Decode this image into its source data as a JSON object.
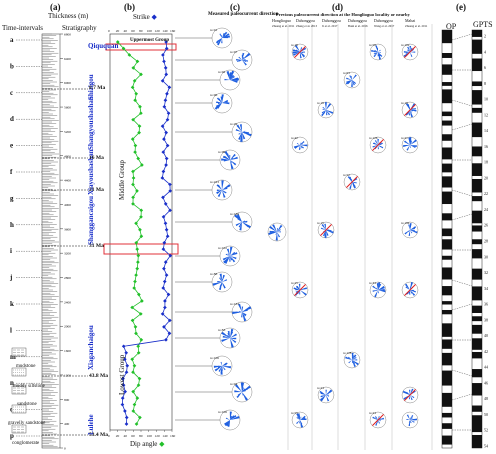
{
  "panels": {
    "a": "(a)",
    "b": "(b)",
    "c": "(c)",
    "d": "(d)",
    "e": "(e)"
  },
  "column_a": {
    "time_intervals": "Time-intervals",
    "thickness": "Thickness (m)",
    "stratigraphy": "Stratigraphy",
    "interval_letters": [
      "a",
      "b",
      "c",
      "d",
      "e",
      "f",
      "g",
      "h",
      "i",
      "j",
      "k",
      "l",
      "m",
      "n",
      "o",
      "p"
    ],
    "thickness_ticks": [
      "0",
      "400",
      "800",
      "1200",
      "1600",
      "2000",
      "2400",
      "2800",
      "3200",
      "3600",
      "4000",
      "4400",
      "4800",
      "5200",
      "5600",
      "6000",
      "6400",
      "6800"
    ],
    "formations": [
      "Qiququan",
      "Shizigou",
      "Shangyoushashan",
      "Xiayoushashan",
      "Shanggancaigou",
      "Xiaganchaigou",
      "Lulehe"
    ],
    "ages": [
      "8.7 Ma",
      "16 Ma",
      "21 Ma",
      "31 Ma",
      "43.8 Ma",
      "53.4 Ma"
    ],
    "legend": [
      "mudstone",
      "muddy siltstone",
      "sandstone",
      "gravelly sandstone",
      "conglomerate"
    ]
  },
  "column_b": {
    "strike_label": "Strike",
    "dip_label": "Dip angle",
    "x_ticks": [
      "0",
      "20",
      "40",
      "60",
      "80",
      "100",
      "120",
      "140",
      "160"
    ],
    "groups": [
      "Uppermost Group",
      "Middle Group",
      "Lowest Group"
    ]
  },
  "column_c": {
    "title": "Measured paleocurrent direction",
    "counts": [
      "n=91",
      "n=97",
      "n=92",
      "n=96",
      "n=29",
      "n=99",
      "n=223",
      "n=186",
      "n=102",
      "n=88",
      "n=183",
      "n=83",
      "n=106",
      "n=92",
      "n=106"
    ]
  },
  "column_d": {
    "title": "Previous paleocurrent direction at the Honglioguo locality or nearby",
    "sources": [
      "Honglioguo",
      "Dahonggou",
      "Dahonggou",
      "Dahonggou",
      "Dahonggou",
      "Mahai"
    ],
    "refs": [
      "Zhuang et al. 2011",
      "Zhang et al. 2013",
      "Ji et al. 2017",
      "Bush et al. 2016",
      "Wang et al. 2017",
      "Zhuang et al. 2011"
    ],
    "counts": [
      "n=19",
      "n=42",
      "n=25",
      "n=55",
      "n=19",
      "n=15",
      "n=24",
      "n=63",
      "n=52",
      "n=128",
      "n=58",
      "n=126",
      "n=34",
      "n=24",
      "n=102",
      "n=10",
      "n=21",
      "n=184"
    ]
  },
  "column_e": {
    "op": "OP",
    "gpts": "GPTS",
    "ticks": [
      "2",
      "4",
      "6",
      "8",
      "10",
      "12",
      "14",
      "16",
      "18",
      "20",
      "22",
      "24",
      "26",
      "28",
      "30",
      "32",
      "34",
      "36",
      "38",
      "40",
      "42",
      "44",
      "46",
      "48",
      "50",
      "52",
      "54"
    ]
  },
  "colors": {
    "strike": "#1a2fc9",
    "dip": "#22c02a",
    "rose": "#1f5fe0",
    "arrow": "#e02020",
    "highlight": "#e0303a",
    "age": "#111111"
  }
}
